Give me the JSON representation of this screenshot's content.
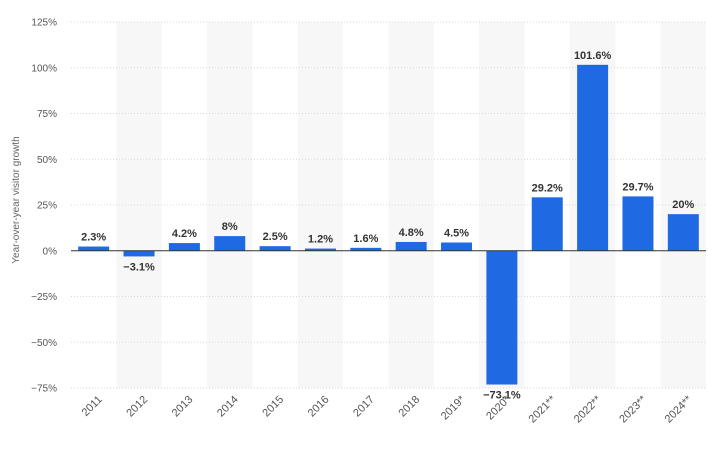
{
  "chart_data": {
    "type": "bar",
    "ylabel": "Year-over-year visitor growth",
    "xlabel": "",
    "ylim": [
      -75,
      125
    ],
    "yticks": [
      {
        "value": 125,
        "label": "125%"
      },
      {
        "value": 100,
        "label": "100%"
      },
      {
        "value": 75,
        "label": "75%"
      },
      {
        "value": 50,
        "label": "50%"
      },
      {
        "value": 25,
        "label": "25%"
      },
      {
        "value": 0,
        "label": "0%"
      },
      {
        "value": -25,
        "label": "−25%"
      },
      {
        "value": -50,
        "label": "−50%"
      },
      {
        "value": -75,
        "label": "−75%"
      }
    ],
    "categories": [
      "2011",
      "2012",
      "2013",
      "2014",
      "2015",
      "2016",
      "2017",
      "2018",
      "2019*",
      "2020*",
      "2021**",
      "2022**",
      "2023**",
      "2024**"
    ],
    "values": [
      2.3,
      -3.1,
      4.2,
      8,
      2.5,
      1.2,
      1.6,
      4.8,
      4.5,
      -73.1,
      29.2,
      101.6,
      29.7,
      20
    ],
    "data_labels": [
      "2.3%",
      "−3.1%",
      "4.2%",
      "8%",
      "2.5%",
      "1.2%",
      "1.6%",
      "4.8%",
      "4.5%",
      "−73.1%",
      "29.2%",
      "101.6%",
      "29.7%",
      "20%"
    ],
    "grid": true,
    "bar_color": "#1f6ae3",
    "band_color": "#f7f7f7",
    "grid_color": "#d8d8d8"
  }
}
